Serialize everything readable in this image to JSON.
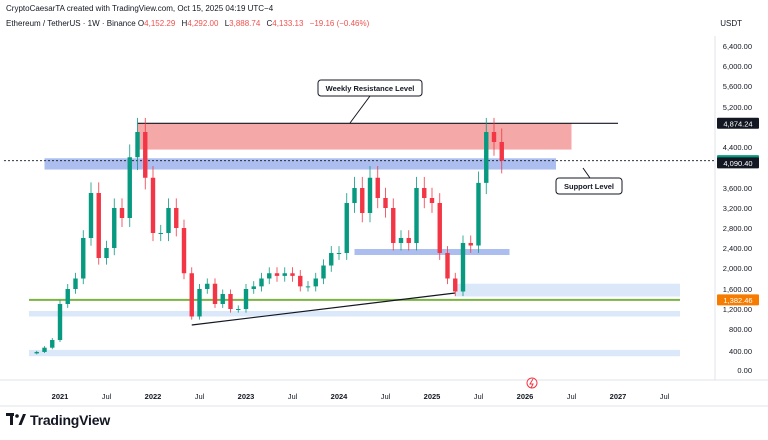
{
  "header": {
    "attribution": "CryptoCaesarTA created with TradingView.com, Oct 15, 2025 04:19 UTC−4",
    "symbol": "Ethereum / TetherUS · 1W · Binance",
    "o_label": "O",
    "o_val": "4,152.29",
    "h_label": "H",
    "h_val": "4,292.00",
    "l_label": "L",
    "l_val": "3,888.74",
    "c_label": "C",
    "c_val": "4,133.13",
    "change": "−19.16 (−0.46%)",
    "currency": "USDT"
  },
  "footer": {
    "brand": "TradingView"
  },
  "chart_data": {
    "type": "candlestick",
    "y_scale": "log",
    "yticks": [
      0,
      400,
      800,
      1200,
      1600,
      2000,
      2400,
      2800,
      3200,
      3600,
      4400,
      5200,
      5600,
      6000,
      6400
    ],
    "ytick_labels": [
      "0.00",
      "400.00",
      "800.00",
      "1,200.00",
      "1,600.00",
      "2,000.00",
      "2,400.00",
      "2,800.00",
      "3,200.00",
      "3,600.00",
      "4,400.00",
      "5,200.00",
      "5,600.00",
      "6,000.00",
      "6,400.00"
    ],
    "xticks": [
      "2021",
      "Jul",
      "2022",
      "Jul",
      "2023",
      "Jul",
      "2024",
      "Jul",
      "2025",
      "Jul",
      "2026",
      "Jul",
      "2027",
      "Jul"
    ],
    "x_range": [
      "2020-09",
      "2027-09"
    ],
    "annotations": {
      "resistance_label": "Weekly Resistance Level",
      "support_label": "Support Level"
    },
    "price_tags": [
      {
        "label": "4,874.24",
        "value": 4874.24,
        "color": "#131722"
      },
      {
        "label": "4,133.13",
        "value": 4133.13,
        "color": "#089981"
      },
      {
        "label": "4,090.40",
        "value": 4090.4,
        "color": "#131722"
      },
      {
        "label": "1,382.46",
        "value": 1382.46,
        "color": "#f57c00"
      }
    ],
    "zones": [
      {
        "name": "weekly-resistance",
        "from_date": "2021-11",
        "to_date": "2026-07",
        "low": 4350,
        "high": 4874,
        "color": "#f28b8b"
      },
      {
        "name": "support-band",
        "from_date": "2020-11",
        "to_date": "2026-05",
        "low": 3960,
        "high": 4180,
        "color": "#8fa8ea"
      },
      {
        "name": "mid-band",
        "from_date": "2024-03",
        "to_date": "2025-11",
        "low": 2260,
        "high": 2380,
        "color": "#8fa8ea"
      },
      {
        "name": "low-band-1",
        "from_date": "2025-04",
        "to_date": "2027-09",
        "low": 1450,
        "high": 1700,
        "color": "#cfe0f7"
      },
      {
        "name": "low-band-2",
        "from_date": "2020-09",
        "to_date": "2027-09",
        "low": 1050,
        "high": 1160,
        "color": "#cfe0f7"
      },
      {
        "name": "bottom-band",
        "from_date": "2020-09",
        "to_date": "2027-09",
        "low": 290,
        "high": 420,
        "color": "#cfe0f7"
      }
    ],
    "lines": [
      {
        "name": "top-line",
        "from_date": "2021-11",
        "to_date": "2027-01",
        "value": 4874,
        "color": "#131722"
      },
      {
        "name": "green-support",
        "from_date": "2020-09",
        "to_date": "2027-09",
        "value": 1382,
        "color": "#7cb342"
      },
      {
        "name": "trendline",
        "from": [
          "2022-06",
          880
        ],
        "to": [
          "2025-04",
          1520
        ],
        "color": "#131722"
      }
    ],
    "weekly_close_series": [
      [
        "2020-09",
        350
      ],
      [
        "2020-10",
        380
      ],
      [
        "2020-11",
        460
      ],
      [
        "2020-12",
        600
      ],
      [
        "2021-01",
        1300
      ],
      [
        "2021-02",
        1600
      ],
      [
        "2021-03",
        1800
      ],
      [
        "2021-04",
        2600
      ],
      [
        "2021-05",
        3500
      ],
      [
        "2021-06",
        2200
      ],
      [
        "2021-07",
        2400
      ],
      [
        "2021-08",
        3200
      ],
      [
        "2021-09",
        3000
      ],
      [
        "2021-10",
        4200
      ],
      [
        "2021-11",
        4700
      ],
      [
        "2021-12",
        3800
      ],
      [
        "2022-01",
        2700
      ],
      [
        "2022-02",
        2700
      ],
      [
        "2022-03",
        3200
      ],
      [
        "2022-04",
        2800
      ],
      [
        "2022-05",
        1900
      ],
      [
        "2022-06",
        1050
      ],
      [
        "2022-07",
        1600
      ],
      [
        "2022-08",
        1700
      ],
      [
        "2022-09",
        1300
      ],
      [
        "2022-10",
        1500
      ],
      [
        "2022-11",
        1200
      ],
      [
        "2022-12",
        1200
      ],
      [
        "2023-01",
        1600
      ],
      [
        "2023-02",
        1650
      ],
      [
        "2023-03",
        1800
      ],
      [
        "2023-04",
        1900
      ],
      [
        "2023-05",
        1850
      ],
      [
        "2023-06",
        1900
      ],
      [
        "2023-07",
        1850
      ],
      [
        "2023-08",
        1650
      ],
      [
        "2023-09",
        1650
      ],
      [
        "2023-10",
        1800
      ],
      [
        "2023-11",
        2050
      ],
      [
        "2023-12",
        2300
      ],
      [
        "2024-01",
        2300
      ],
      [
        "2024-02",
        3300
      ],
      [
        "2024-03",
        3600
      ],
      [
        "2024-04",
        3100
      ],
      [
        "2024-05",
        3800
      ],
      [
        "2024-06",
        3400
      ],
      [
        "2024-07",
        3200
      ],
      [
        "2024-08",
        2500
      ],
      [
        "2024-09",
        2600
      ],
      [
        "2024-10",
        2500
      ],
      [
        "2024-11",
        3600
      ],
      [
        "2024-12",
        3400
      ],
      [
        "2025-01",
        3300
      ],
      [
        "2025-02",
        2300
      ],
      [
        "2025-03",
        1800
      ],
      [
        "2025-04",
        1550
      ],
      [
        "2025-05",
        2500
      ],
      [
        "2025-06",
        2450
      ],
      [
        "2025-07",
        3700
      ],
      [
        "2025-08",
        4700
      ],
      [
        "2025-09",
        4500
      ],
      [
        "2025-10",
        4133
      ]
    ],
    "grid": false,
    "legend": "none"
  }
}
